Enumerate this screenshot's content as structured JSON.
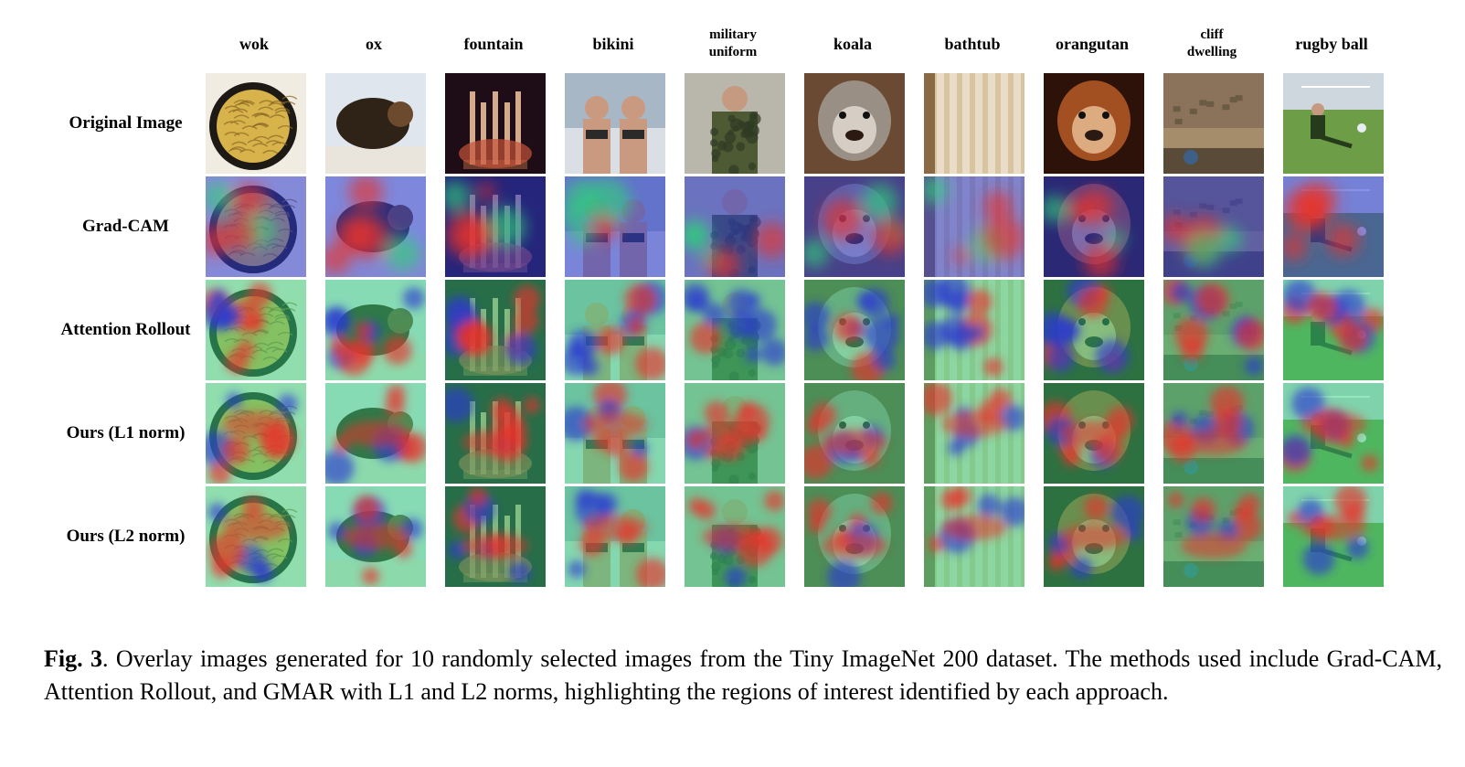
{
  "figure": {
    "columns": [
      {
        "label": "wok",
        "line2": "",
        "scene": {
          "bg": "#f1ece2",
          "fg": "#2a2218",
          "accent": "#d8b24a",
          "shape": "round"
        }
      },
      {
        "label": "ox",
        "line2": "",
        "scene": {
          "bg": "#dfe6ee",
          "fg": "#2f2217",
          "accent": "#6b4a2e",
          "shape": "blob"
        }
      },
      {
        "label": "fountain",
        "line2": "",
        "scene": {
          "bg": "#1e0d16",
          "fg": "#f3c7a0",
          "accent": "#c4523a",
          "shape": "jets"
        }
      },
      {
        "label": "bikini",
        "line2": "",
        "scene": {
          "bg": "#a7b7c5",
          "fg": "#c99a80",
          "accent": "#2a2a2a",
          "shape": "people"
        }
      },
      {
        "label": "military",
        "line2": "uniform",
        "scene": {
          "bg": "#b9b7ab",
          "fg": "#4d5a34",
          "accent": "#2f3a24",
          "shape": "person"
        }
      },
      {
        "label": "koala",
        "line2": "",
        "scene": {
          "bg": "#6b4a33",
          "fg": "#9a8f84",
          "accent": "#e9e3db",
          "shape": "face"
        }
      },
      {
        "label": "bathtub",
        "line2": "",
        "scene": {
          "bg": "#d8c4a0",
          "fg": "#efe6d6",
          "accent": "#8a6a44",
          "shape": "curtain"
        }
      },
      {
        "label": "orangutan",
        "line2": "",
        "scene": {
          "bg": "#2c1208",
          "fg": "#a24f22",
          "accent": "#f0c9a0",
          "shape": "face"
        }
      },
      {
        "label": "cliff",
        "line2": "dwelling",
        "scene": {
          "bg": "#a58c6a",
          "fg": "#6b5a44",
          "accent": "#3e5f86",
          "shape": "cliff"
        }
      },
      {
        "label": "rugby ball",
        "line2": "",
        "scene": {
          "bg": "#6e9d47",
          "fg": "#263a1c",
          "accent": "#e8eef4",
          "shape": "field"
        }
      }
    ],
    "rows": [
      {
        "label": "Original Image",
        "mode": "original"
      },
      {
        "label": "Grad-CAM",
        "mode": "gradcam"
      },
      {
        "label": "Attention Rollout",
        "mode": "rollout"
      },
      {
        "label": "Ours (L1 norm)",
        "mode": "ours_l1"
      },
      {
        "label": "Ours (L2 norm)",
        "mode": "ours_l2"
      }
    ],
    "heatmap_colors": {
      "low": "#2b3bd0",
      "mid": "#2fd07a",
      "high": "#e8312a"
    }
  },
  "caption": {
    "fig_num": "Fig. 3",
    "text": ".  Overlay images generated for 10 randomly selected images from the Tiny ImageNet 200 dataset.  The methods used include Grad-CAM, Attention Rollout, and GMAR with L1 and L2 norms, highlighting the regions of interest identified by each approach."
  }
}
